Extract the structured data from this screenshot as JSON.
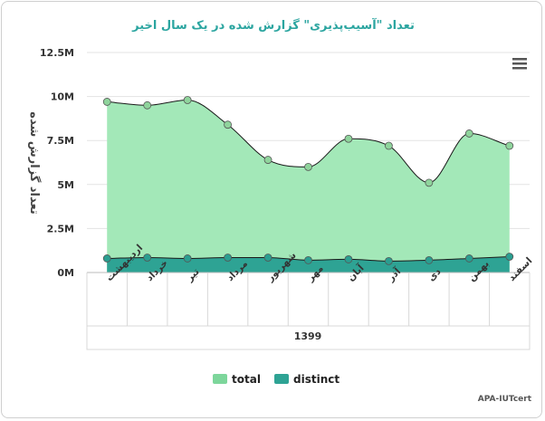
{
  "chart_data": {
    "type": "area",
    "title": "تعداد \"آسیب‌پذیری\" گزارش شده در یک سال اخیر",
    "ylabel": "تعداد گزارش شده",
    "categories": [
      "اردیبهشت",
      "خرداد",
      "تیر",
      "مرداد",
      "شهریور",
      "مهر",
      "آبان",
      "آذر",
      "دی",
      "بهمن",
      "اسفند"
    ],
    "x_group_label": "1399",
    "yticks": [
      "0M",
      "2.5M",
      "5M",
      "7.5M",
      "10M",
      "12.5M"
    ],
    "ylim": [
      0,
      12500000
    ],
    "series": [
      {
        "name": "total",
        "color": "#a3e8b8",
        "point_color": "#8fd49c",
        "values": [
          9700000,
          9500000,
          9800000,
          8400000,
          6400000,
          6000000,
          7600000,
          7200000,
          5100000,
          7900000,
          7200000
        ]
      },
      {
        "name": "distinct",
        "color": "#2ea394",
        "point_color": "#2a9e90",
        "values": [
          800000,
          850000,
          800000,
          850000,
          850000,
          700000,
          750000,
          650000,
          700000,
          800000,
          900000
        ]
      }
    ],
    "legend_position": "bottom",
    "grid": true,
    "credit": "APA-IUTcert"
  }
}
